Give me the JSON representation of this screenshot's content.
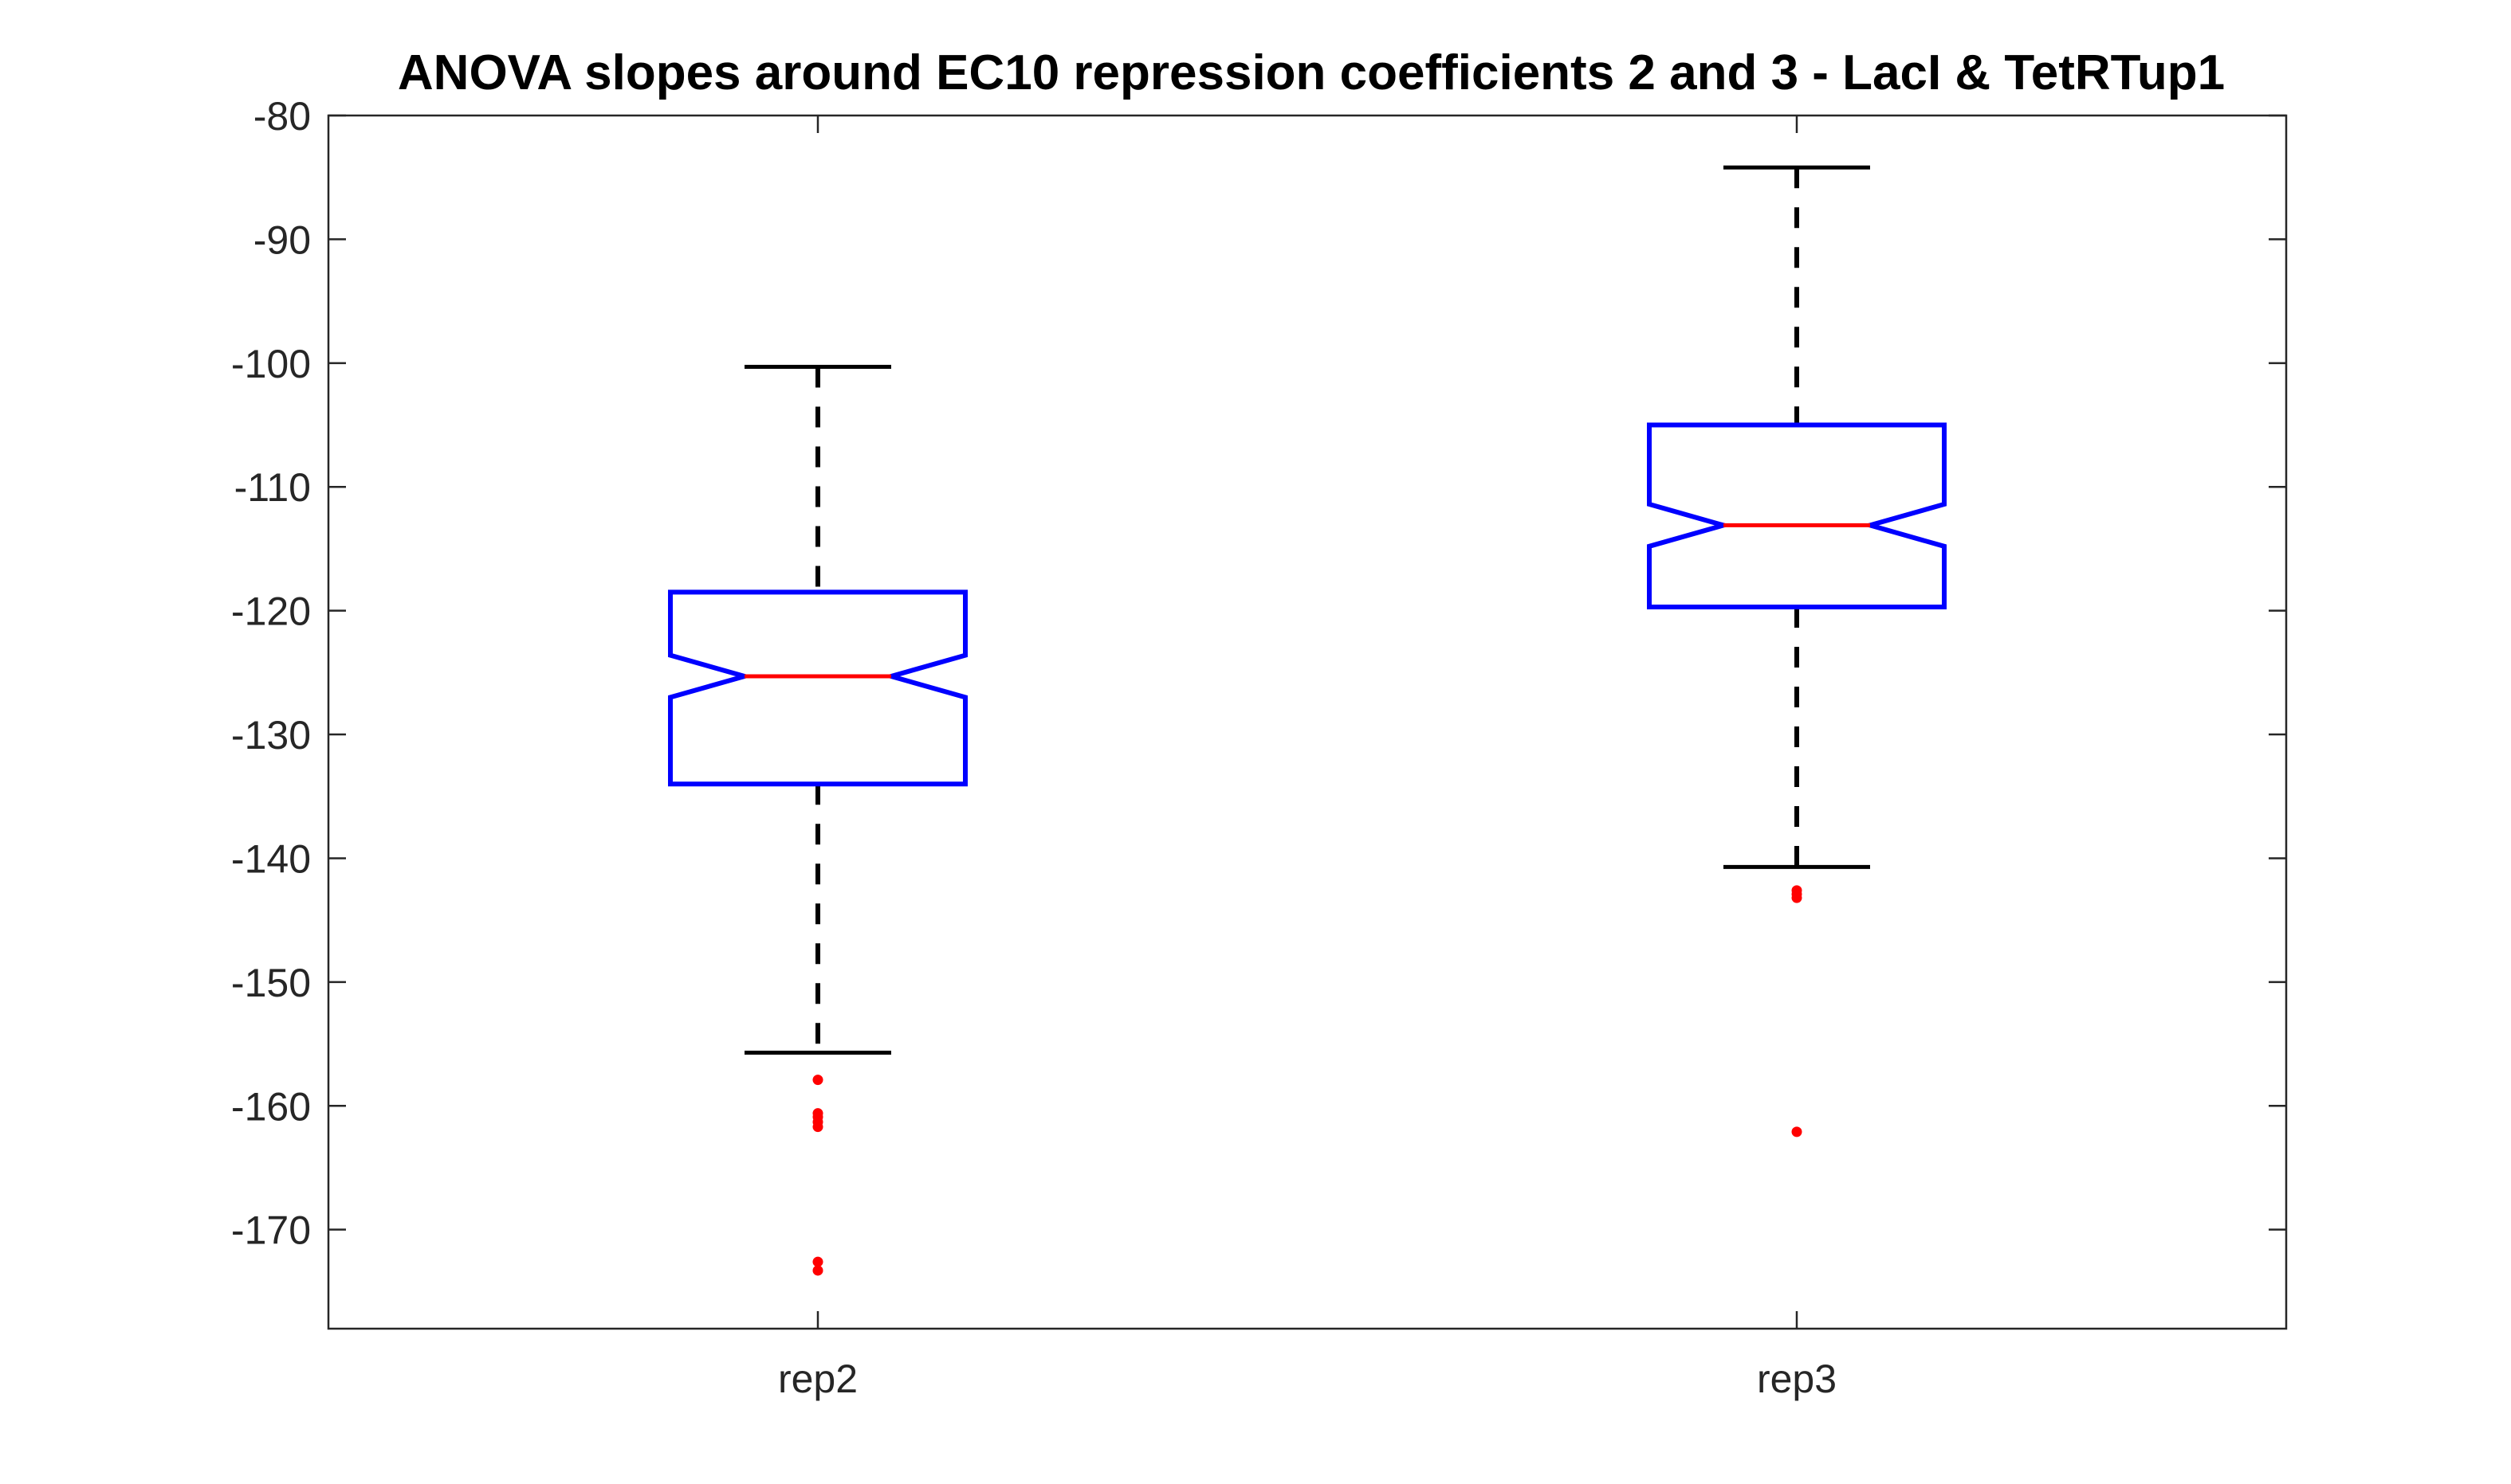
{
  "chart_data": {
    "type": "boxplot",
    "title": "ANOVA slopes around EC10 repression coefficients 2 and 3 - LacI & TetRTup1",
    "xlabel": "",
    "ylabel": "",
    "categories": [
      "rep2",
      "rep3"
    ],
    "ylim": [
      -178,
      -80
    ],
    "yticks": [
      -170,
      -160,
      -150,
      -140,
      -130,
      -120,
      -110,
      -100,
      -90,
      -80
    ],
    "ytick_labels": [
      "-170",
      "-160",
      "-150",
      "-140",
      "-130",
      "-120",
      "-110",
      "-100",
      "-90",
      "-80"
    ],
    "notched": true,
    "grid": false,
    "boxes": [
      {
        "label": "rep2",
        "whisker_high": -100.3,
        "q3": -118.5,
        "notch_high": -123.6,
        "median": -125.3,
        "notch_low": -127.0,
        "q1": -134.0,
        "whisker_low": -155.7,
        "outliers": [
          -157.9,
          -160.6,
          -160.9,
          -161.3,
          -161.7,
          -172.6,
          -173.3
        ]
      },
      {
        "label": "rep3",
        "whisker_high": -84.2,
        "q3": -105.0,
        "notch_high": -111.4,
        "median": -113.1,
        "notch_low": -114.8,
        "q1": -119.7,
        "whisker_low": -140.7,
        "outliers": [
          -142.6,
          -142.9,
          -143.2,
          -162.1
        ]
      }
    ],
    "colors": {
      "box": "#0000ff",
      "median": "#ff0000",
      "whisker": "#000000",
      "outlier": "#ff0000",
      "axis": "#262626"
    }
  }
}
